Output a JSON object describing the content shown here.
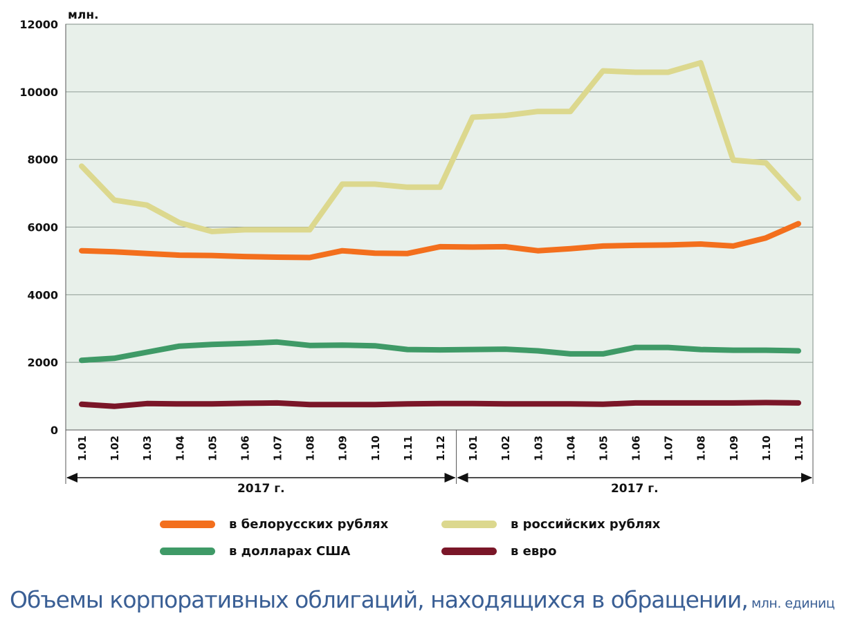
{
  "caption": {
    "title": "Объемы корпоративных облигаций, находящихся в обращении,",
    "unit": "млн. единиц"
  },
  "chart_data": {
    "type": "line",
    "unit_label": "млн.",
    "ylim": [
      0,
      12000
    ],
    "y_ticks": [
      "0",
      "2000",
      "4000",
      "6000",
      "8000",
      "10000",
      "12000"
    ],
    "categories": [
      "1.01",
      "1.02",
      "1.03",
      "1.04",
      "1.05",
      "1.06",
      "1.07",
      "1.08",
      "1.09",
      "1.10",
      "1.11",
      "1.12",
      "1.01",
      "1.02",
      "1.03",
      "1.04",
      "1.05",
      "1.06",
      "1.07",
      "1.08",
      "1.09",
      "1.10",
      "1.11"
    ],
    "periods": [
      {
        "label": "2017 г.",
        "from": 0,
        "to": 11
      },
      {
        "label": "2017 г.",
        "from": 12,
        "to": 22
      }
    ],
    "grid": true,
    "plot_background": "#e8f0ea",
    "series": [
      {
        "name": "в белорусских рублях",
        "color": "#f36f1d",
        "values": [
          5300,
          5270,
          5220,
          5170,
          5160,
          5130,
          5110,
          5100,
          5300,
          5230,
          5220,
          5420,
          5410,
          5420,
          5300,
          5360,
          5440,
          5460,
          5470,
          5500,
          5440,
          5680,
          6100
        ]
      },
      {
        "name": "в российских рублях",
        "color": "#dcd88e",
        "values": [
          7800,
          6800,
          6650,
          6130,
          5870,
          5920,
          5920,
          5920,
          7270,
          7270,
          7180,
          7180,
          9250,
          9300,
          9420,
          9420,
          10620,
          10580,
          10580,
          10860,
          7980,
          7900,
          6850
        ]
      },
      {
        "name": "в долларах США",
        "color": "#3f9a67",
        "values": [
          2060,
          2120,
          2300,
          2480,
          2530,
          2560,
          2600,
          2500,
          2510,
          2490,
          2380,
          2370,
          2380,
          2390,
          2340,
          2250,
          2250,
          2440,
          2440,
          2380,
          2360,
          2360,
          2340
        ]
      },
      {
        "name": "в евро",
        "color": "#7a1628",
        "values": [
          760,
          700,
          780,
          770,
          770,
          790,
          800,
          750,
          750,
          750,
          770,
          780,
          780,
          770,
          770,
          770,
          760,
          800,
          800,
          800,
          800,
          810,
          800
        ]
      }
    ],
    "legend": "bottom"
  }
}
